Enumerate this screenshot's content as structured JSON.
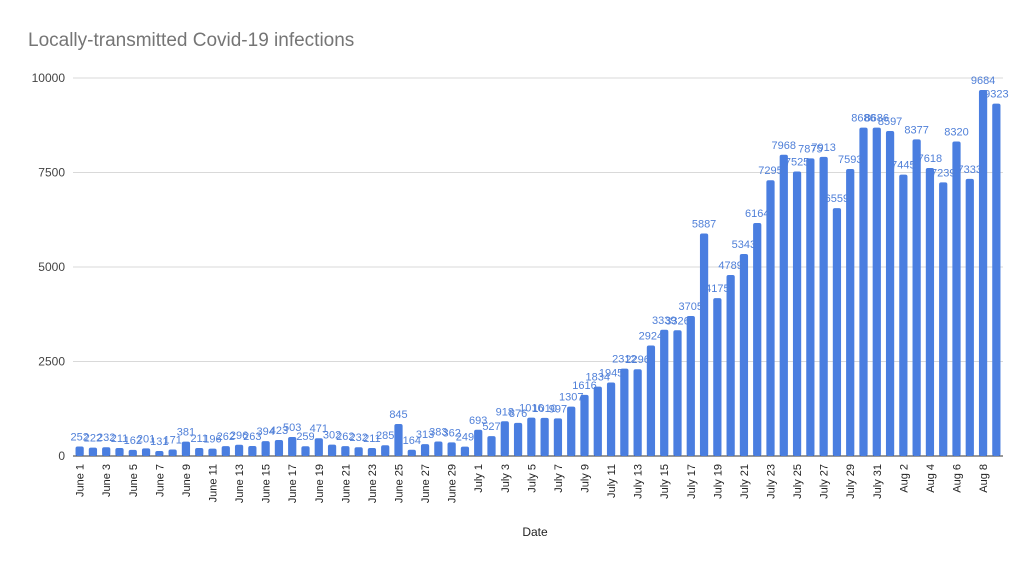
{
  "chart_data": {
    "type": "bar",
    "title": "Locally-transmitted Covid-19 infections",
    "xlabel": "Date",
    "ylabel": "",
    "ylim": [
      0,
      10000
    ],
    "yticks": [
      0,
      2500,
      5000,
      7500,
      10000
    ],
    "grid": true,
    "legend": "none",
    "bar_color": "#4a7ee0",
    "label_color": "#4f7fd8",
    "categories": [
      "June 1",
      "June 2",
      "June 3",
      "June 4",
      "June 5",
      "June 6",
      "June 7",
      "June 8",
      "June 9",
      "June 10",
      "June 11",
      "June 12",
      "June 13",
      "June 14",
      "June 15",
      "June 16",
      "June 17",
      "June 18",
      "June 19",
      "June 20",
      "June 21",
      "June 22",
      "June 23",
      "June 24",
      "June 25",
      "June 26",
      "June 27",
      "June 28",
      "June 29",
      "June 30",
      "July 1",
      "July 2",
      "July 3",
      "July 4",
      "July 5",
      "July 6",
      "July 7",
      "July 8",
      "July 9",
      "July 10",
      "July 11",
      "July 12",
      "July 13",
      "July 14",
      "July 15",
      "July 16",
      "July 17",
      "July 18",
      "July 19",
      "July 20",
      "July 21",
      "July 22",
      "July 23",
      "July 24",
      "July 25",
      "July 26",
      "July 27",
      "July 28",
      "July 29",
      "July 30",
      "July 31",
      "Aug 1",
      "Aug 2",
      "Aug 3",
      "Aug 4",
      "Aug 5",
      "Aug 6",
      "Aug 7",
      "Aug 8",
      "Aug 9"
    ],
    "xtick_labels": [
      "June 1",
      "",
      "June 3",
      "",
      "June 5",
      "",
      "June 7",
      "",
      "June 9",
      "",
      "June 11",
      "",
      "June 13",
      "",
      "June 15",
      "",
      "June 17",
      "",
      "June 19",
      "",
      "June 21",
      "",
      "June 23",
      "",
      "June 25",
      "",
      "June 27",
      "",
      "June 29",
      "",
      "July 1",
      "",
      "July 3",
      "",
      "July 5",
      "",
      "July 7",
      "",
      "July 9",
      "",
      "July 11",
      "",
      "July 13",
      "",
      "July 15",
      "",
      "July 17",
      "",
      "July 19",
      "",
      "July 21",
      "",
      "July 23",
      "",
      "July 25",
      "",
      "July 27",
      "",
      "July 29",
      "",
      "July 31",
      "",
      "Aug 2",
      "",
      "Aug 4",
      "",
      "Aug 6",
      "",
      "Aug 8",
      ""
    ],
    "values": [
      252,
      222,
      232,
      211,
      162,
      201,
      131,
      171,
      381,
      211,
      196,
      262,
      296,
      263,
      394,
      423,
      503,
      259,
      471,
      302,
      262,
      232,
      211,
      285,
      845,
      164,
      313,
      383,
      362,
      249,
      693,
      527,
      918,
      876,
      1016,
      1010,
      997,
      1307,
      1616,
      1834,
      1945,
      2312,
      2296,
      2924,
      3339,
      3326,
      3705,
      5887,
      4175,
      4789,
      5343,
      6164,
      7295,
      7968,
      7525,
      7875,
      7913,
      6559,
      7593,
      8686,
      8686,
      8597,
      7445,
      8377,
      7618,
      7239,
      8320,
      7333,
      9684,
      9323
    ]
  }
}
